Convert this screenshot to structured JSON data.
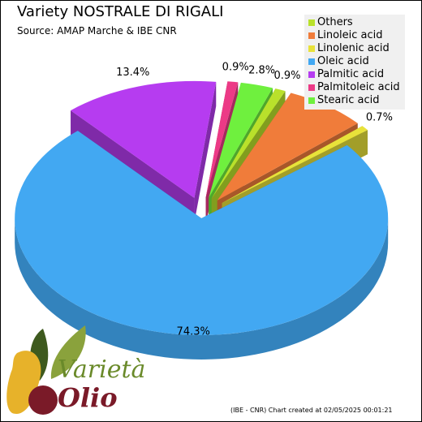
{
  "header": {
    "title": "Variety NOSTRALE DI RIGALI",
    "subtitle": "Source: AMAP Marche & IBE CNR"
  },
  "footer": {
    "credit": "(IBE - CNR) Chart created at 02/05/2025 00:01:21"
  },
  "logo": {
    "line1": "Varietà",
    "line2": "Olio"
  },
  "chart_data": {
    "type": "pie",
    "style": "3d-exploded",
    "legend_position": "top-right",
    "series": [
      {
        "name": "Others",
        "value": 0.9,
        "label": "0.9%",
        "color": "#b9e12b"
      },
      {
        "name": "Linoleic acid",
        "value": 7.1,
        "label": "7.1%",
        "color": "#f07c3a"
      },
      {
        "name": "Linolenic acid",
        "value": 0.7,
        "label": "0.7%",
        "color": "#e8e23a"
      },
      {
        "name": "Oleic acid",
        "value": 74.3,
        "label": "74.3%",
        "color": "#42a8f2"
      },
      {
        "name": "Palmitic acid",
        "value": 13.4,
        "label": "13.4%",
        "color": "#b63cf0"
      },
      {
        "name": "Palmitoleic acid",
        "value": 0.9,
        "label": "0.9%",
        "color": "#ec3a86"
      },
      {
        "name": "Stearic acid",
        "value": 2.8,
        "label": "2.8%",
        "color": "#6ff03e"
      }
    ]
  }
}
